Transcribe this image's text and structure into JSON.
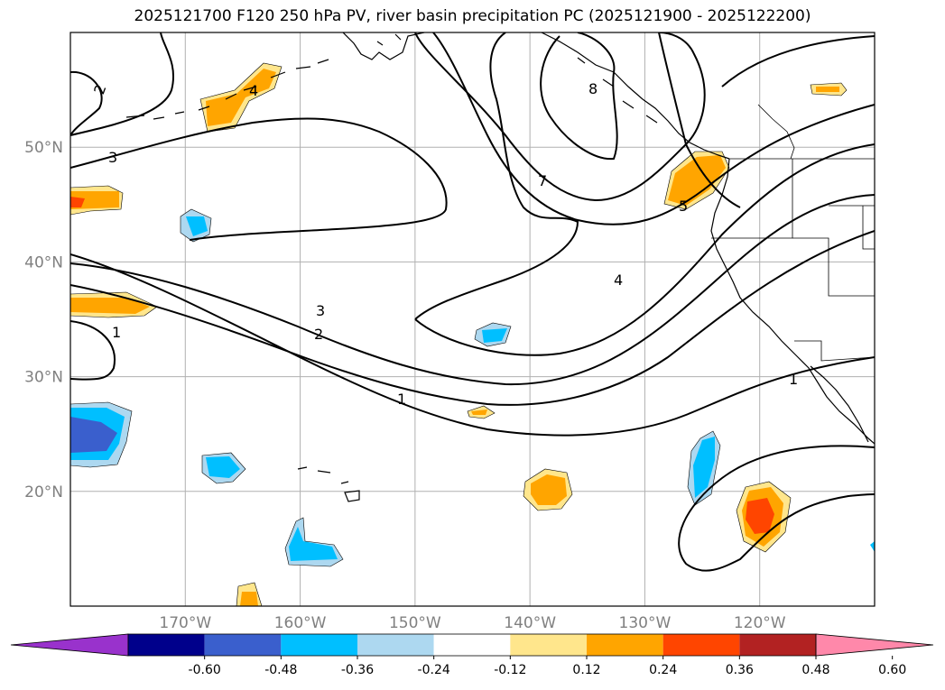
{
  "title": "2025121700 F120 250 hPa PV, river basin precipitation PC (2025121900 - 2025122200)",
  "map": {
    "extent": {
      "lon_min": -180,
      "lon_max": -110,
      "lat_min": 10,
      "lat_max": 60
    },
    "lat_labels": [
      {
        "value": 20,
        "text": "20°N"
      },
      {
        "value": 30,
        "text": "30°N"
      },
      {
        "value": 40,
        "text": "40°N"
      },
      {
        "value": 50,
        "text": "50°N"
      }
    ],
    "lon_labels": [
      {
        "value": -170,
        "text": "170°W"
      },
      {
        "value": -160,
        "text": "160°W"
      },
      {
        "value": -150,
        "text": "150°W"
      },
      {
        "value": -140,
        "text": "140°W"
      },
      {
        "value": -130,
        "text": "130°W"
      },
      {
        "value": -120,
        "text": "120°W"
      }
    ],
    "gridlines": true,
    "pv_contour_labels": [
      "1",
      "2",
      "3",
      "4",
      "5",
      "7",
      "8"
    ]
  },
  "colorbar": {
    "ticks": [
      "-0.60",
      "-0.48",
      "-0.36",
      "-0.24",
      "-0.12",
      "0.12",
      "0.24",
      "0.36",
      "0.48",
      "0.60"
    ],
    "colors": [
      "#9932cc",
      "#00008b",
      "#3a5fcd",
      "#00bfff",
      "#add8f0",
      "#ffffff",
      "#ffe68c",
      "#ffa500",
      "#ff4500",
      "#b22222",
      "#ff88aa"
    ],
    "extend": "both"
  }
}
